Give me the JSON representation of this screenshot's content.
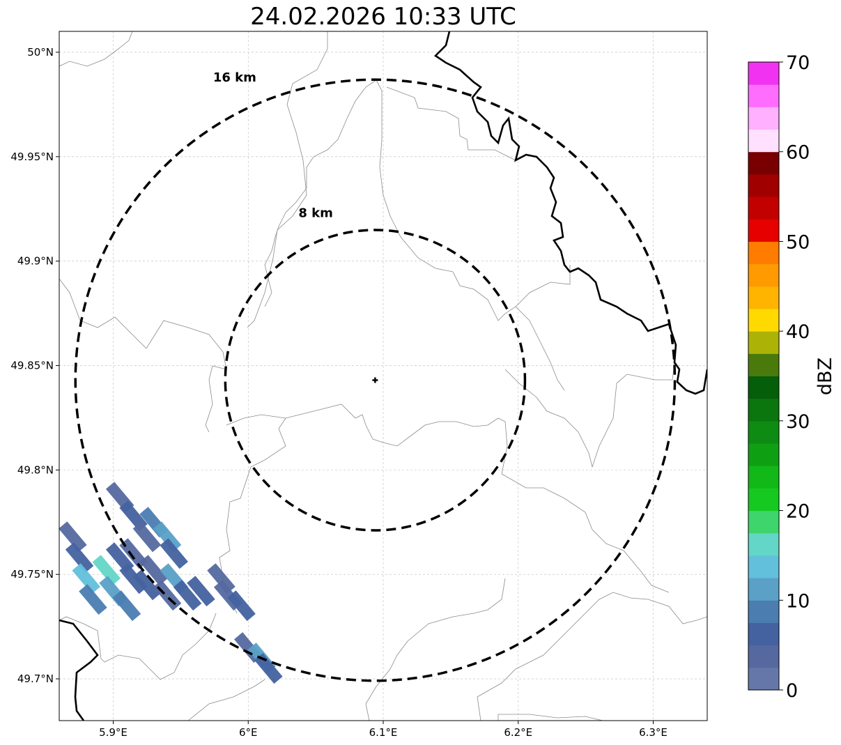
{
  "title": "24.02.2026 10:33 UTC",
  "map": {
    "lon_range": [
      5.86,
      6.34
    ],
    "lat_range": [
      49.68,
      50.01
    ],
    "lon_ticks": [
      {
        "value": 5.9,
        "label": "5.9°E"
      },
      {
        "value": 6.0,
        "label": "6°E"
      },
      {
        "value": 6.1,
        "label": "6.1°E"
      },
      {
        "value": 6.2,
        "label": "6.2°E"
      },
      {
        "value": 6.3,
        "label": "6.3°E"
      }
    ],
    "lat_ticks": [
      {
        "value": 49.7,
        "label": "49.7°N"
      },
      {
        "value": 49.75,
        "label": "49.75°N"
      },
      {
        "value": 49.8,
        "label": "49.8°N"
      },
      {
        "value": 49.85,
        "label": "49.85°N"
      },
      {
        "value": 49.9,
        "label": "49.9°N"
      },
      {
        "value": 49.95,
        "label": "49.95°N"
      },
      {
        "value": 50.0,
        "label": "50°N"
      }
    ],
    "gridlines": true,
    "radar_site": {
      "lon": 6.094,
      "lat": 49.843
    },
    "range_rings": [
      {
        "label": "8 km",
        "lat_radius": 0.0719,
        "lon_radius": 0.111,
        "label_lon": 6.05,
        "label_lat": 49.921
      },
      {
        "label": "16 km",
        "lat_radius": 0.1439,
        "lon_radius": 0.222,
        "label_lon": 5.99,
        "label_lat": 49.986
      }
    ],
    "echoes": [
      {
        "lon": 5.905,
        "lat": 49.787,
        "dbz": 3
      },
      {
        "lon": 5.915,
        "lat": 49.778,
        "dbz": 6
      },
      {
        "lon": 5.925,
        "lat": 49.768,
        "dbz": 4
      },
      {
        "lon": 5.93,
        "lat": 49.775,
        "dbz": 9
      },
      {
        "lon": 5.94,
        "lat": 49.768,
        "dbz": 12
      },
      {
        "lon": 5.945,
        "lat": 49.76,
        "dbz": 5
      },
      {
        "lon": 5.915,
        "lat": 49.76,
        "dbz": 3
      },
      {
        "lon": 5.87,
        "lat": 49.768,
        "dbz": 4
      },
      {
        "lon": 5.875,
        "lat": 49.758,
        "dbz": 6
      },
      {
        "lon": 5.88,
        "lat": 49.748,
        "dbz": 13
      },
      {
        "lon": 5.885,
        "lat": 49.738,
        "dbz": 9
      },
      {
        "lon": 5.895,
        "lat": 49.752,
        "dbz": 15
      },
      {
        "lon": 5.9,
        "lat": 49.742,
        "dbz": 11
      },
      {
        "lon": 5.91,
        "lat": 49.735,
        "dbz": 8
      },
      {
        "lon": 5.905,
        "lat": 49.758,
        "dbz": 7
      },
      {
        "lon": 5.915,
        "lat": 49.748,
        "dbz": 5
      },
      {
        "lon": 5.925,
        "lat": 49.745,
        "dbz": 6
      },
      {
        "lon": 5.93,
        "lat": 49.752,
        "dbz": 4
      },
      {
        "lon": 5.94,
        "lat": 49.74,
        "dbz": 3
      },
      {
        "lon": 5.945,
        "lat": 49.748,
        "dbz": 12
      },
      {
        "lon": 5.955,
        "lat": 49.74,
        "dbz": 5
      },
      {
        "lon": 5.965,
        "lat": 49.742,
        "dbz": 6
      },
      {
        "lon": 5.98,
        "lat": 49.748,
        "dbz": 4
      },
      {
        "lon": 5.985,
        "lat": 49.74,
        "dbz": 3
      },
      {
        "lon": 5.995,
        "lat": 49.735,
        "dbz": 5
      },
      {
        "lon": 6.0,
        "lat": 49.715,
        "dbz": 4
      },
      {
        "lon": 6.01,
        "lat": 49.71,
        "dbz": 10
      },
      {
        "lon": 6.015,
        "lat": 49.705,
        "dbz": 6
      }
    ]
  },
  "colorbar": {
    "label": "dBZ",
    "min": 0,
    "max": 70,
    "tick_values": [
      0,
      10,
      20,
      30,
      40,
      50,
      60,
      70
    ],
    "tick_labels": [
      "0",
      "10",
      "20",
      "30",
      "40",
      "50",
      "60",
      "70"
    ],
    "colors": [
      "#6477a8",
      "#5569a0",
      "#4462a0",
      "#4b7db1",
      "#5aa0c7",
      "#62c0dc",
      "#63d6c7",
      "#3dd56c",
      "#15c920",
      "#12b718",
      "#0f9f13",
      "#0d8b12",
      "#0a760d",
      "#055e0a",
      "#4a7a0c",
      "#adb306",
      "#ffd900",
      "#ffb400",
      "#ff9a00",
      "#ff7c00",
      "#e60000",
      "#c30000",
      "#a00000",
      "#780000",
      "#ffe0ff",
      "#ffb0ff",
      "#ff6dff",
      "#f133f1"
    ]
  }
}
